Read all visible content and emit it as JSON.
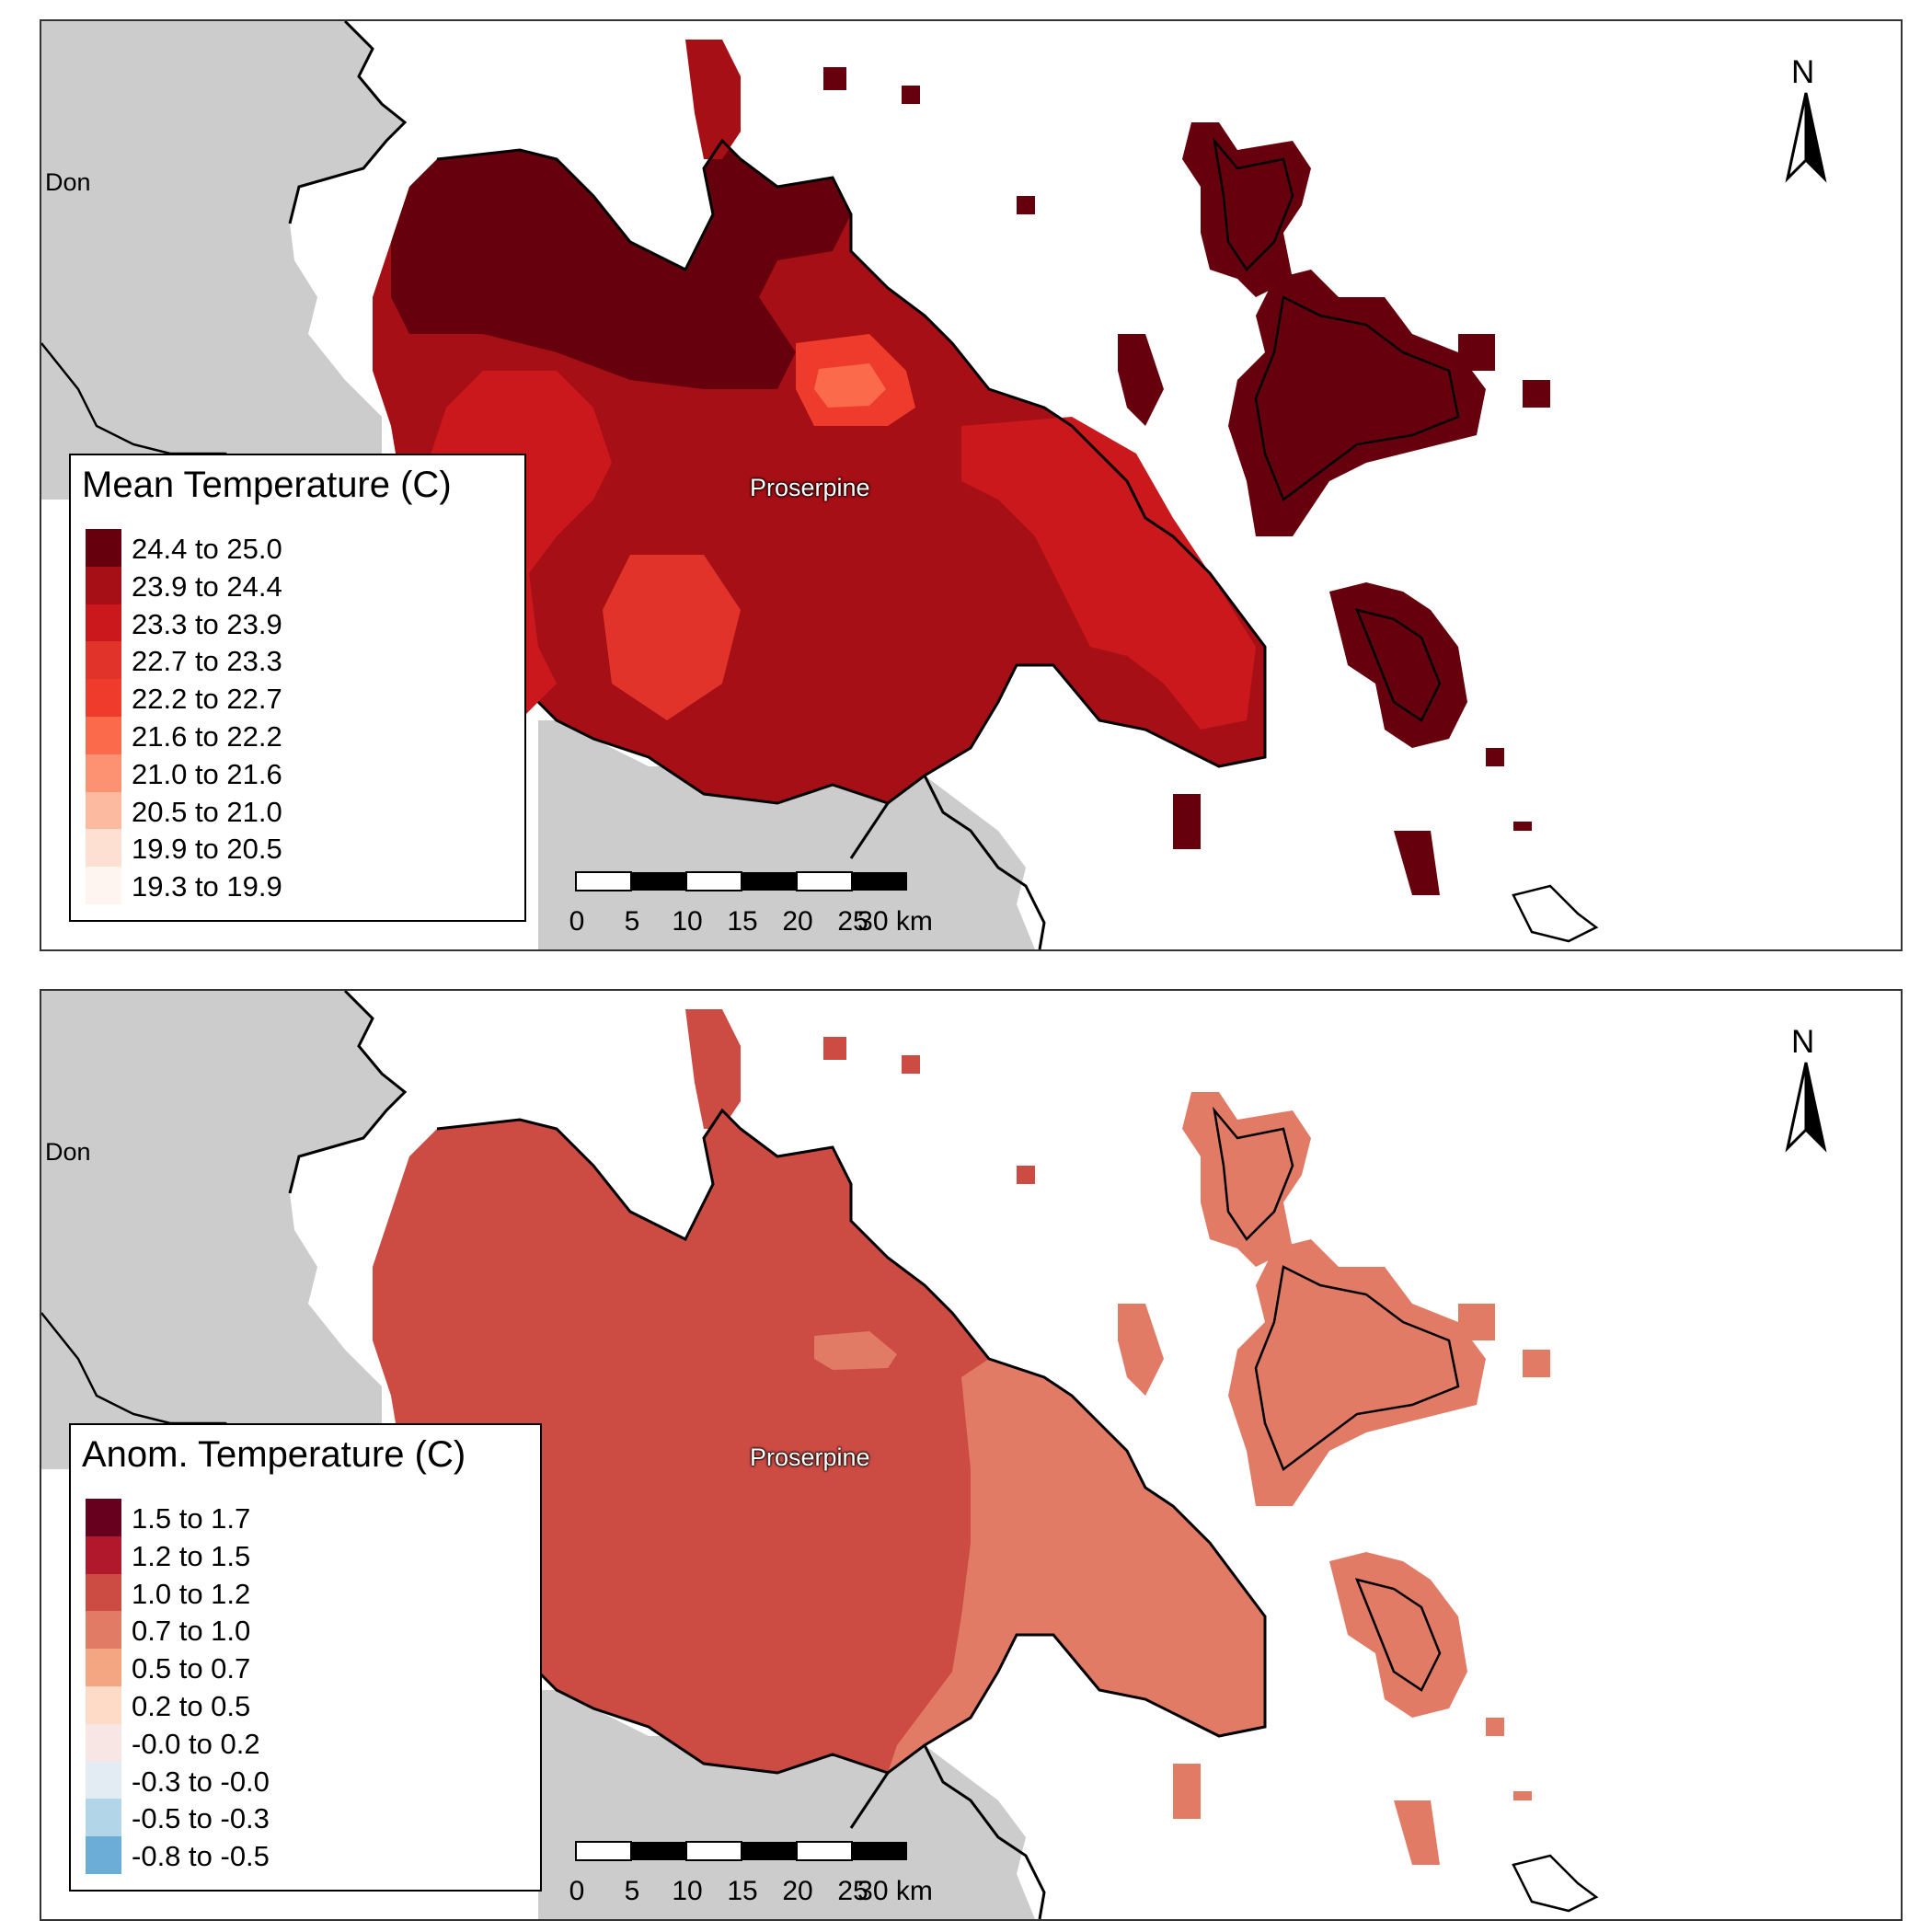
{
  "panels": [
    {
      "legend_title": "Mean Temperature (C)",
      "legend": [
        {
          "label": "24.4 to 25.0",
          "color": "#67000d"
        },
        {
          "label": "23.9 to 24.4",
          "color": "#a50f15"
        },
        {
          "label": "23.3 to 23.9",
          "color": "#cb181d"
        },
        {
          "label": "22.7 to 23.3",
          "color": "#e2332b"
        },
        {
          "label": "22.2 to 22.7",
          "color": "#ef3b2c"
        },
        {
          "label": "21.6 to 22.2",
          "color": "#fb6a4a"
        },
        {
          "label": "21.0 to 21.6",
          "color": "#fc9272"
        },
        {
          "label": "20.5 to 21.0",
          "color": "#fcbba1"
        },
        {
          "label": "19.9 to 20.5",
          "color": "#fee0d2"
        },
        {
          "label": "19.3 to 19.9",
          "color": "#fff5f0"
        }
      ],
      "place_labels": [
        "Don",
        "Proserpine"
      ]
    },
    {
      "legend_title": "Anom. Temperature (C)",
      "legend": [
        {
          "label": "1.5 to 1.7",
          "color": "#67001f"
        },
        {
          "label": "1.2 to 1.5",
          "color": "#b2182b"
        },
        {
          "label": "1.0 to 1.2",
          "color": "#cc4c44"
        },
        {
          "label": "0.7 to 1.0",
          "color": "#e27b66"
        },
        {
          "label": "0.5 to 0.7",
          "color": "#f4a582"
        },
        {
          "label": "0.2 to 0.5",
          "color": "#fddbc7"
        },
        {
          "label": "-0.0 to 0.2",
          "color": "#f7e6e3"
        },
        {
          "label": "-0.3 to -0.0",
          "color": "#e4ecf3"
        },
        {
          "label": "-0.5 to -0.3",
          "color": "#b3d5e8"
        },
        {
          "label": "-0.8 to -0.5",
          "color": "#6badd6"
        }
      ],
      "place_labels": [
        "Don",
        "Proserpine"
      ]
    }
  ],
  "scalebar": {
    "ticks": [
      "0",
      "5",
      "10",
      "15",
      "20",
      "25",
      "30 km"
    ]
  },
  "north_arrow": {
    "letter": "N"
  },
  "colors": {
    "land_outside": "#cccccc",
    "water": "#ffffff",
    "outline": "#000000"
  }
}
